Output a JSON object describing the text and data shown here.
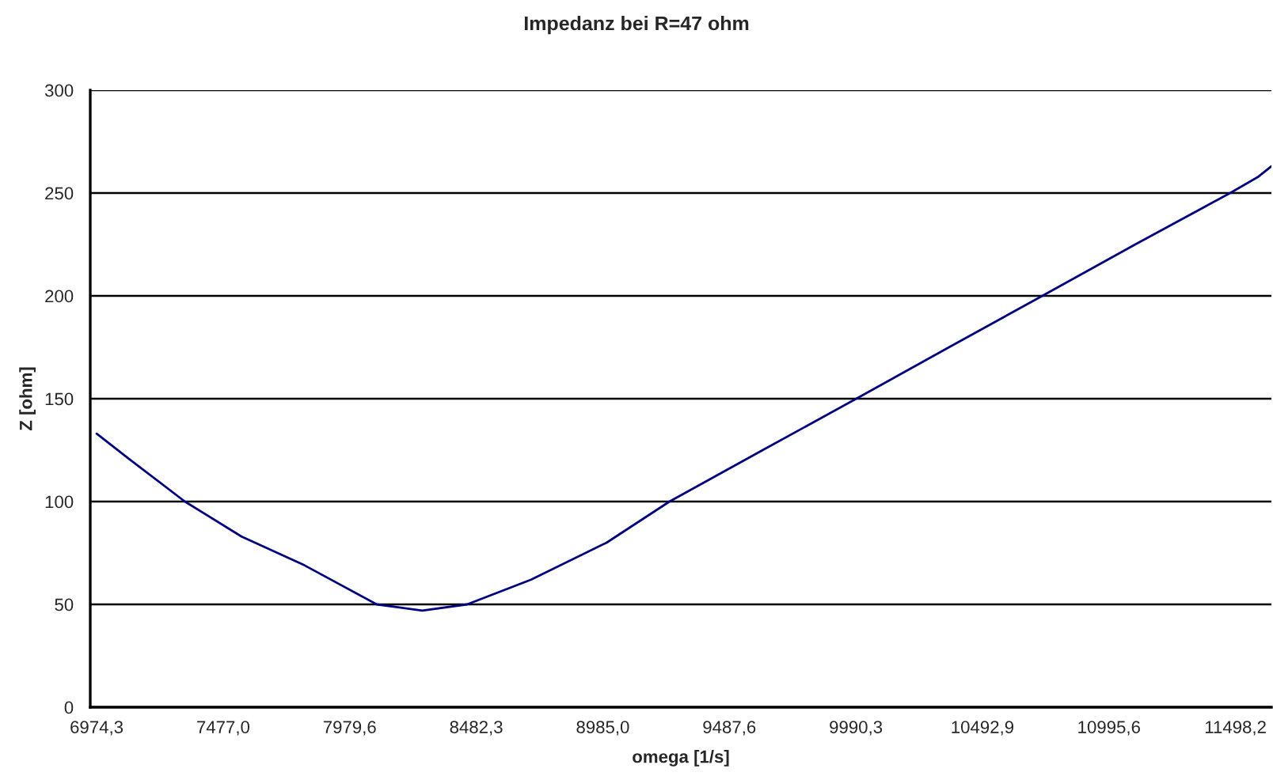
{
  "chart_data": {
    "type": "line",
    "title": "Impedanz bei R=47 ohm",
    "xlabel": "omega [1/s]",
    "ylabel": "Z [ohm]",
    "x": [
      6974.3,
      7100,
      7325,
      7550,
      7800,
      8087,
      8268,
      8446,
      8700,
      9000,
      9250,
      9620,
      9992,
      10360,
      10731,
      11100,
      11477,
      11590,
      11641
    ],
    "series": [
      {
        "color": "#000080",
        "values": [
          133,
          121,
          100,
          83,
          69,
          50,
          47,
          50,
          62,
          80,
          100,
          125,
          150,
          175,
          200,
          225,
          250,
          258,
          263
        ]
      }
    ],
    "xlim": [
      6949,
      11641
    ],
    "ylim": [
      0,
      300
    ],
    "xticks": [
      {
        "value": 6974.3,
        "label": "6974,3"
      },
      {
        "value": 7477.0,
        "label": "7477,0"
      },
      {
        "value": 7979.6,
        "label": "7979,6"
      },
      {
        "value": 8482.3,
        "label": "8482,3"
      },
      {
        "value": 8985.0,
        "label": "8985,0"
      },
      {
        "value": 9487.6,
        "label": "9487,6"
      },
      {
        "value": 9990.3,
        "label": "9990,3"
      },
      {
        "value": 10492.9,
        "label": "10492,9"
      },
      {
        "value": 10995.6,
        "label": "10995,6"
      },
      {
        "value": 11498.2,
        "label": "11498,2"
      }
    ],
    "yticks": [
      0,
      50,
      100,
      150,
      200,
      250,
      300
    ],
    "grid": "y",
    "marker": "none",
    "line_style": "solid",
    "legend": false
  }
}
